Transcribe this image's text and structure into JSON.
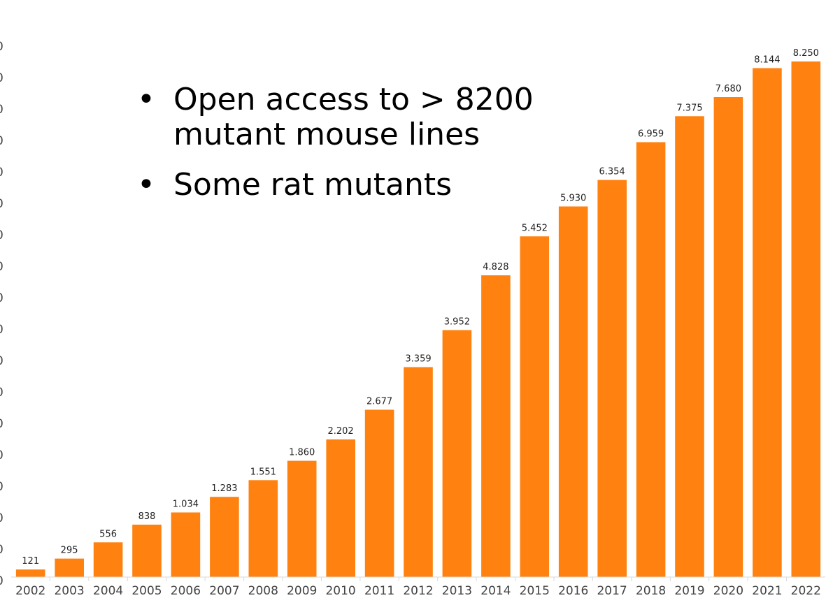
{
  "chart_data": {
    "type": "bar",
    "categories": [
      "2002",
      "2003",
      "2004",
      "2005",
      "2006",
      "2007",
      "2008",
      "2009",
      "2010",
      "2011",
      "2012",
      "2013",
      "2014",
      "2015",
      "2016",
      "2017",
      "2018",
      "2019",
      "2020",
      "2021",
      "2022"
    ],
    "values": [
      121,
      295,
      556,
      838,
      1034,
      1283,
      1551,
      1860,
      2202,
      2677,
      3359,
      3952,
      4828,
      5452,
      5930,
      6354,
      6959,
      7375,
      7680,
      8144,
      8250
    ],
    "labels": [
      "121",
      "295",
      "556",
      "838",
      "1.034",
      "1.283",
      "1.551",
      "1.860",
      "2.202",
      "2.677",
      "3.359",
      "3.952",
      "4.828",
      "5.452",
      "5.930",
      "6.354",
      "6.959",
      "7.375",
      "7.680",
      "8.144",
      "8.250"
    ],
    "title": "",
    "xlabel": "",
    "ylabel": "",
    "color": "#ff8210",
    "grid": false
  },
  "bullets": [
    {
      "marker": "•",
      "text": "Open access to > 8200 mutant mouse lines"
    },
    {
      "marker": "•",
      "text": "Some rat mutants"
    }
  ]
}
